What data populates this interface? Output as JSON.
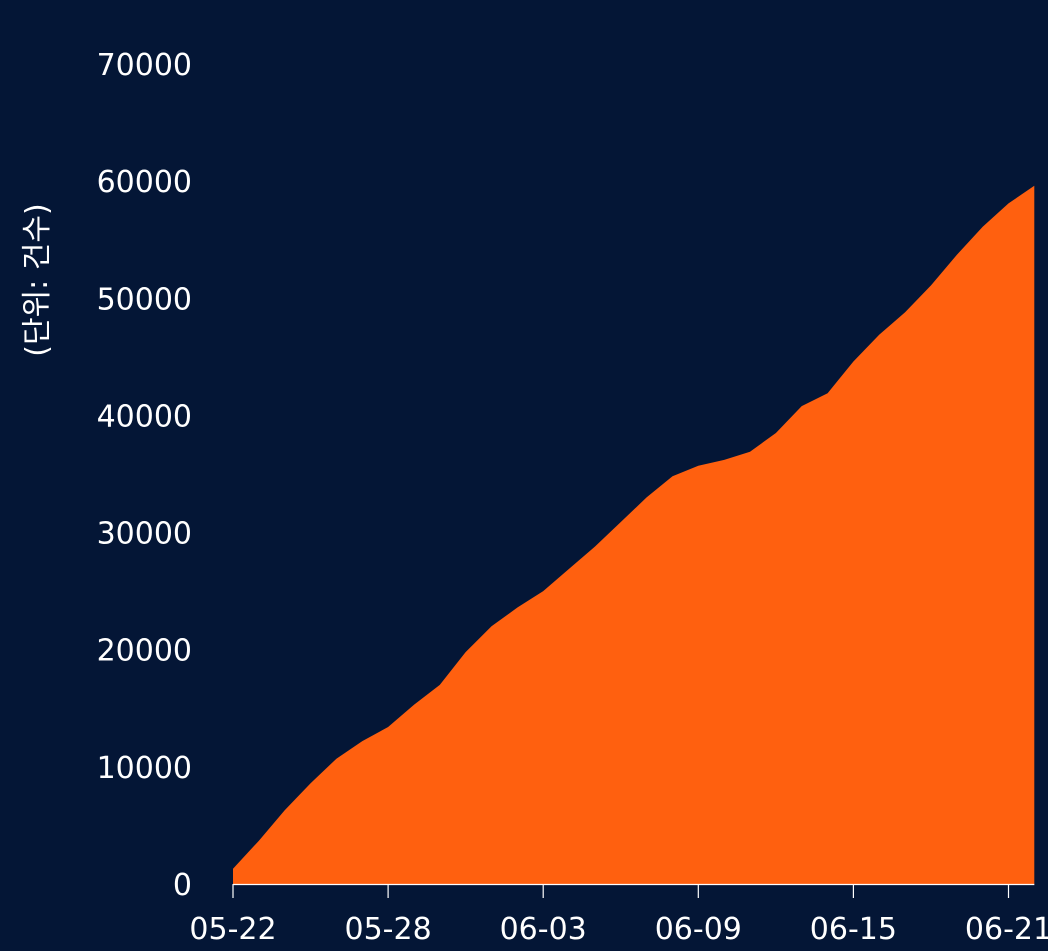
{
  "chart_data": {
    "type": "area",
    "title": "",
    "xlabel": "",
    "ylabel": "(단위: 건수)",
    "x": [
      "05-22",
      "05-23",
      "05-24",
      "05-25",
      "05-26",
      "05-27",
      "05-28",
      "05-29",
      "05-30",
      "05-31",
      "06-01",
      "06-02",
      "06-03",
      "06-04",
      "06-05",
      "06-06",
      "06-07",
      "06-08",
      "06-09",
      "06-10",
      "06-11",
      "06-12",
      "06-13",
      "06-14",
      "06-15",
      "06-16",
      "06-17",
      "06-18",
      "06-19",
      "06-20",
      "06-21",
      "06-22"
    ],
    "series": [
      {
        "values": [
          1300,
          3700,
          6300,
          8600,
          10700,
          12200,
          13400,
          15300,
          17000,
          19800,
          22000,
          23600,
          25000,
          26900,
          28800,
          30900,
          33000,
          34800,
          35700,
          36200,
          36900,
          38500,
          40800,
          41900,
          44600,
          46900,
          48800,
          51100,
          53700,
          56100,
          58100,
          59600
        ],
        "color": "#FF600F"
      }
    ],
    "ylim": [
      0,
      70000
    ],
    "yticks": [
      "0",
      "10000",
      "20000",
      "30000",
      "40000",
      "50000",
      "60000",
      "70000"
    ],
    "xticks": [
      "05-22",
      "05-28",
      "06-03",
      "06-09",
      "06-15",
      "06-21"
    ],
    "grid": false,
    "legend": "none",
    "colors": {
      "background": "#041636",
      "area": "#FF600F",
      "text": "#FFFFFF",
      "axis": "#FFFFFF"
    }
  }
}
